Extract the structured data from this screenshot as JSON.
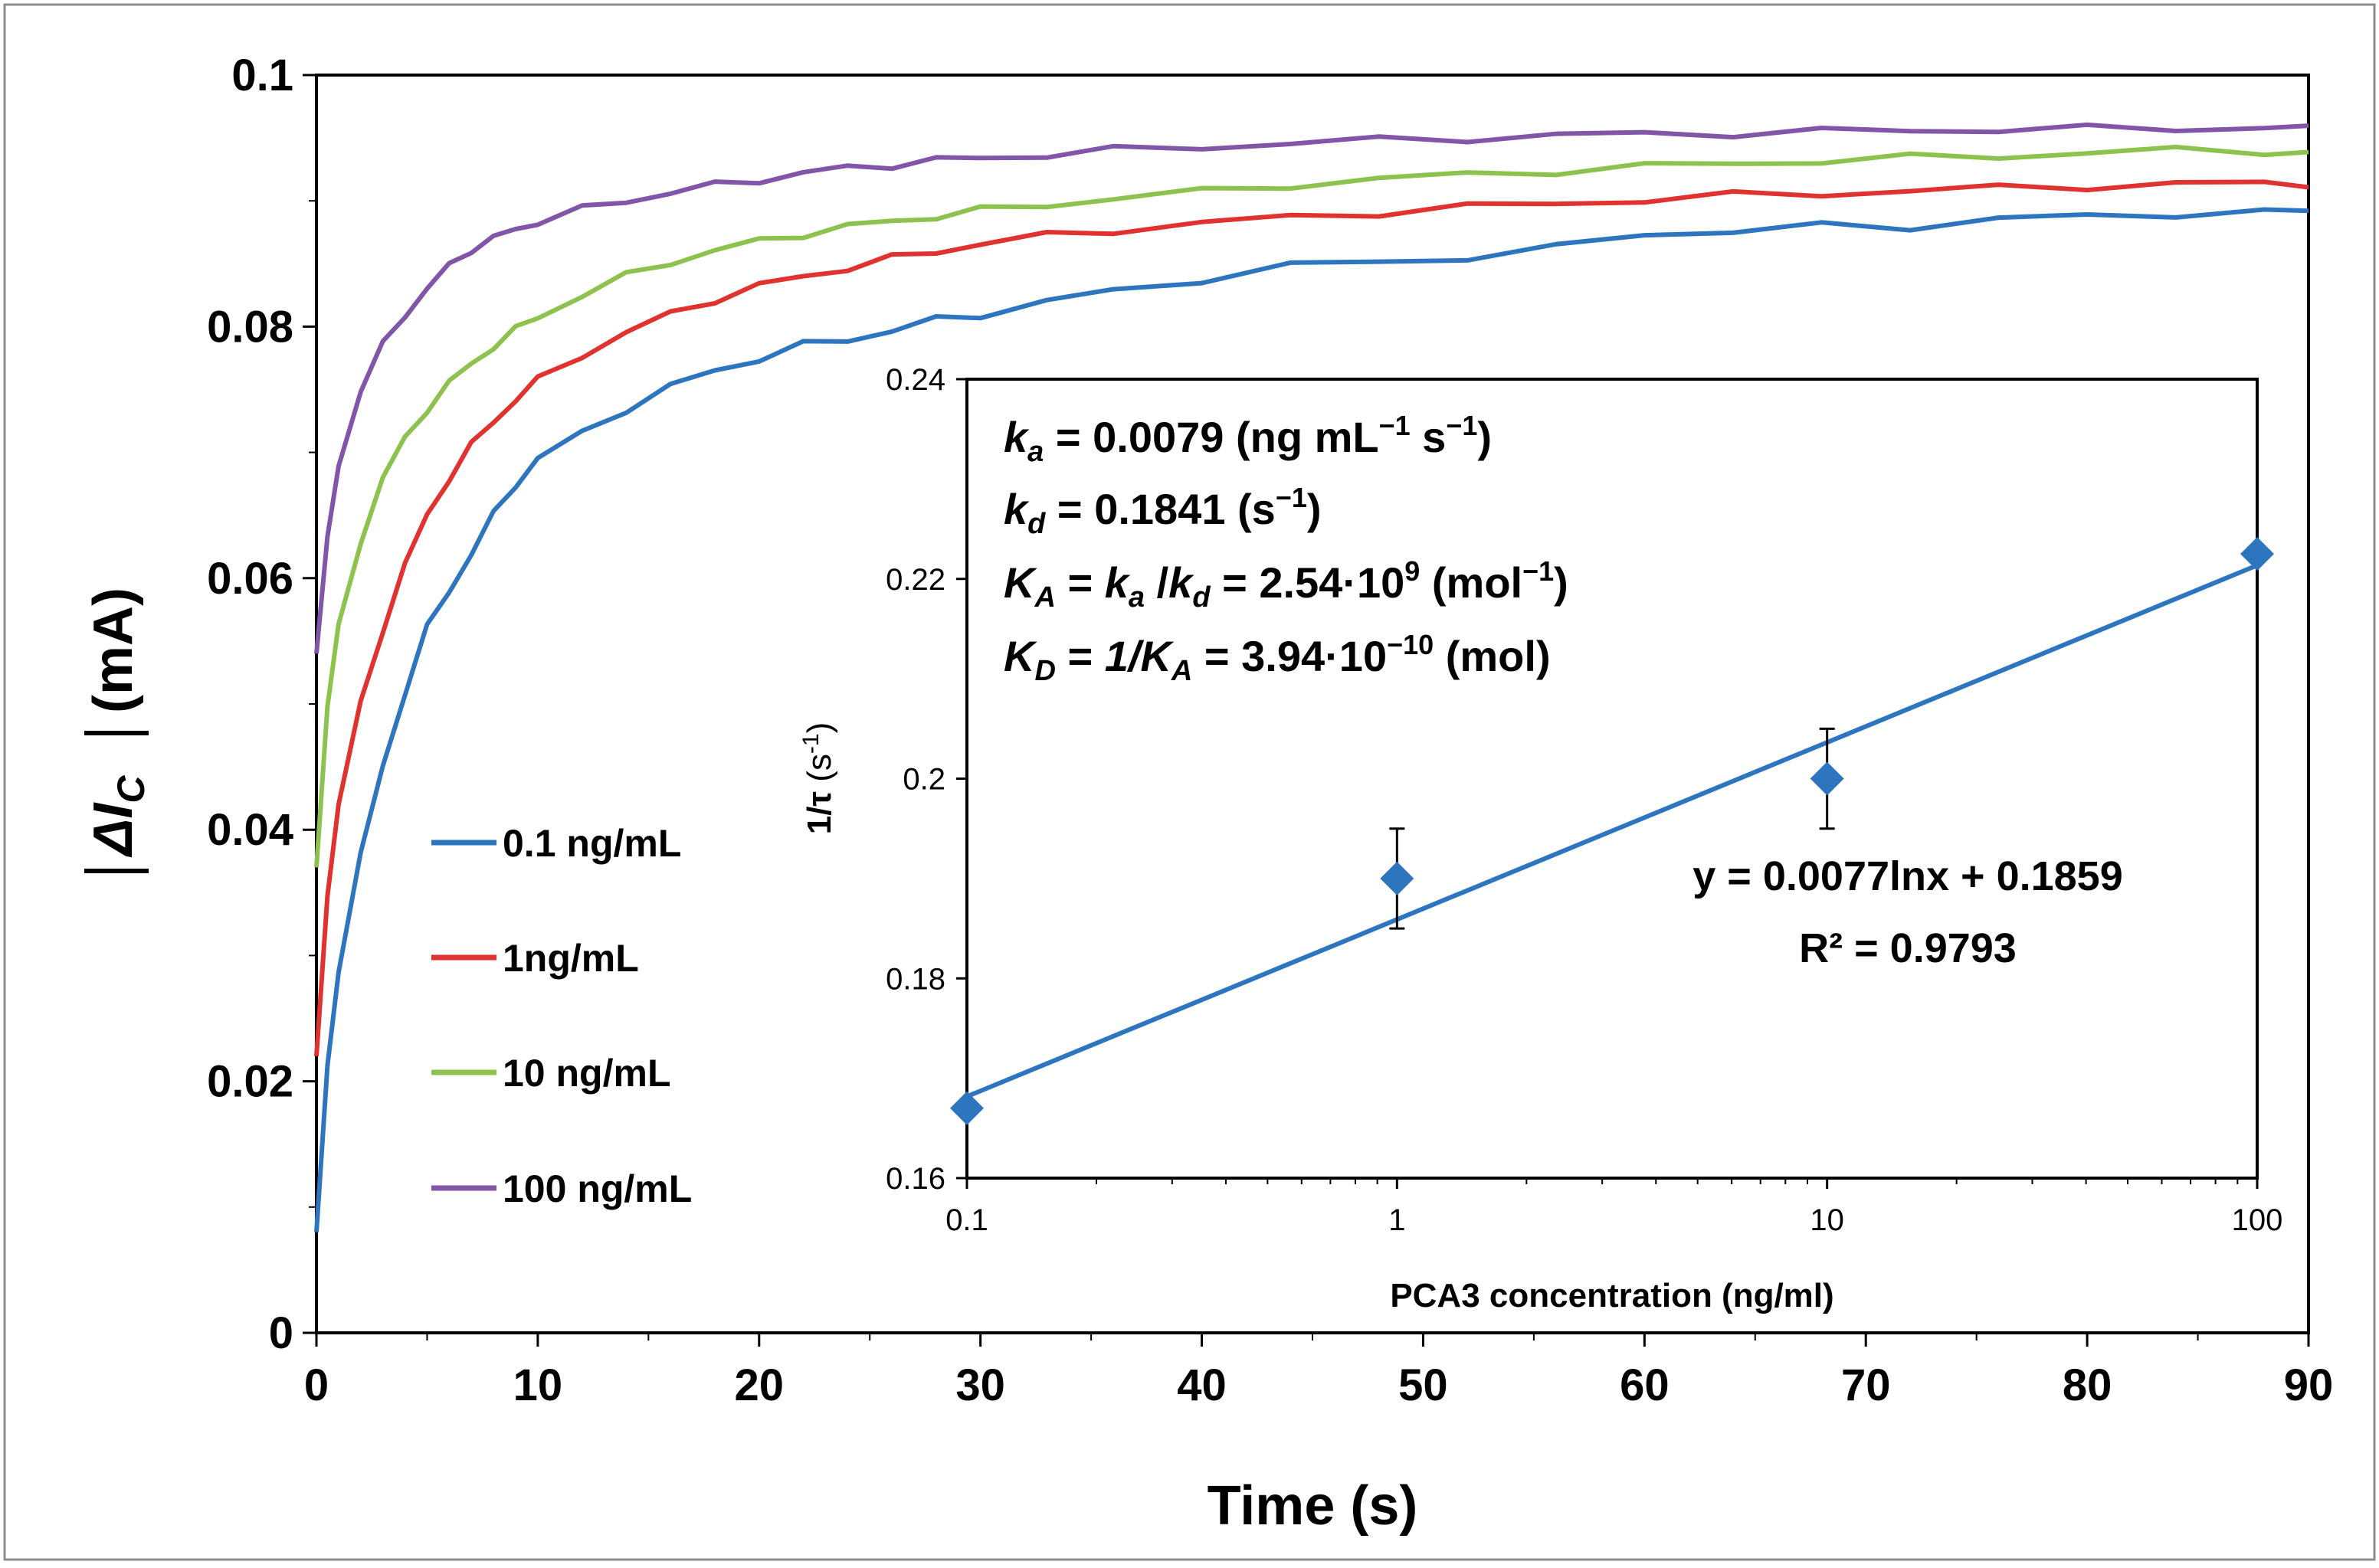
{
  "chart_data": [
    {
      "type": "line",
      "xlabel": "Time (s)",
      "ylabel": {
        "delta": "Δ",
        "var": "I",
        "sub": "C",
        "unit": "(mA)"
      },
      "xlim": [
        0,
        90
      ],
      "ylim": [
        0,
        0.1
      ],
      "x_ticks": [
        "0",
        "10",
        "20",
        "30",
        "40",
        "50",
        "60",
        "70",
        "80",
        "90"
      ],
      "y_ticks": [
        "0",
        "0.02",
        "0.04",
        "0.06",
        "0.08",
        "0.1"
      ],
      "x_tick_values": [
        0,
        10,
        20,
        30,
        40,
        50,
        60,
        70,
        80,
        90
      ],
      "y_tick_values": [
        0,
        0.02,
        0.04,
        0.06,
        0.08,
        0.1
      ],
      "grid": false,
      "legend_position": "left",
      "x": [
        0,
        0.5,
        1,
        2,
        3,
        4,
        5,
        6,
        7,
        8,
        9,
        10,
        12,
        14,
        16,
        18,
        20,
        22,
        24,
        26,
        28,
        30,
        33,
        36,
        40,
        44,
        48,
        52,
        56,
        60,
        64,
        68,
        72,
        76,
        80,
        84,
        88,
        90
      ],
      "series": [
        {
          "name": "0.1 ng/mL",
          "color": "#2e75c0",
          "values": [
            0.008,
            0.021,
            0.029,
            0.038,
            0.045,
            0.051,
            0.056,
            0.059,
            0.062,
            0.065,
            0.0675,
            0.0695,
            0.0715,
            0.0735,
            0.0752,
            0.0765,
            0.0775,
            0.0785,
            0.079,
            0.0797,
            0.0805,
            0.081,
            0.082,
            0.0828,
            0.0838,
            0.0848,
            0.0852,
            0.0855,
            0.0862,
            0.0875,
            0.0875,
            0.088,
            0.088,
            0.0885,
            0.0888,
            0.089,
            0.089,
            0.0893
          ]
        },
        {
          "name": "1ng/mL",
          "color": "#e0322e",
          "values": [
            0.022,
            0.035,
            0.042,
            0.05,
            0.056,
            0.061,
            0.065,
            0.068,
            0.0705,
            0.0725,
            0.0742,
            0.0757,
            0.0778,
            0.0795,
            0.081,
            0.0822,
            0.0832,
            0.084,
            0.0847,
            0.0854,
            0.086,
            0.0866,
            0.0872,
            0.0877,
            0.0882,
            0.0887,
            0.0891,
            0.0895,
            0.0898,
            0.0901,
            0.0904,
            0.0906,
            0.0908,
            0.091,
            0.0912,
            0.0913,
            0.0914,
            0.0914
          ]
        },
        {
          "name": "10 ng/mL",
          "color": "#8ec24e",
          "values": [
            0.037,
            0.05,
            0.056,
            0.063,
            0.068,
            0.071,
            0.0735,
            0.0755,
            0.077,
            0.0785,
            0.0797,
            0.0808,
            0.0825,
            0.084,
            0.0852,
            0.086,
            0.0868,
            0.0874,
            0.0879,
            0.0884,
            0.0888,
            0.0892,
            0.0897,
            0.0902,
            0.0907,
            0.0913,
            0.0917,
            0.0921,
            0.0924,
            0.0927,
            0.093,
            0.0932,
            0.0934,
            0.0936,
            0.0938,
            0.094,
            0.094,
            0.0937
          ]
        },
        {
          "name": "100 ng/mL",
          "color": "#8155a8",
          "values": [
            0.054,
            0.063,
            0.069,
            0.075,
            0.0785,
            0.081,
            0.083,
            0.0848,
            0.0862,
            0.087,
            0.0877,
            0.0884,
            0.0893,
            0.09,
            0.0907,
            0.0912,
            0.0917,
            0.0922,
            0.0926,
            0.0929,
            0.0932,
            0.0934,
            0.0937,
            0.094,
            0.0943,
            0.0946,
            0.0948,
            0.095,
            0.0952,
            0.0953,
            0.0954,
            0.0955,
            0.0956,
            0.0957,
            0.0957,
            0.0958,
            0.0958,
            0.0957
          ]
        }
      ]
    },
    {
      "type": "scatter",
      "x_scale": "log",
      "xlabel": "PCA3 concentration (ng/ml)",
      "ylabel": {
        "main": "1/τ",
        "unit_base": "(s",
        "unit_exp": "-1",
        "unit_close": ")"
      },
      "xlim": [
        0.1,
        100
      ],
      "ylim": [
        0.16,
        0.24
      ],
      "x_ticks": [
        "0.1",
        "1",
        "10",
        "100"
      ],
      "y_ticks": [
        "0.16",
        "0.18",
        "0.2",
        "0.22",
        "0.24"
      ],
      "x_tick_values": [
        0.1,
        1,
        10,
        100
      ],
      "y_tick_values": [
        0.16,
        0.18,
        0.2,
        0.22,
        0.24
      ],
      "points": [
        {
          "x": 0.1,
          "y": 0.167,
          "err": 0
        },
        {
          "x": 1,
          "y": 0.19,
          "err": 0.005
        },
        {
          "x": 10,
          "y": 0.2,
          "err": 0.005
        },
        {
          "x": 100,
          "y": 0.2225,
          "err": 0
        }
      ],
      "point_color": "#2e75c0",
      "fit": {
        "slope": 0.0077,
        "intercept": 0.1859,
        "color": "#2e75c0",
        "equation": "y = 0.0077lnx + 0.1859",
        "r2_label": "R² = 0.9793"
      },
      "annotations": {
        "ka": {
          "sym": "k",
          "sub": "a",
          "text": " = 0.0079 (ng mL",
          "exp1": "−1",
          "mid": " s",
          "exp2": "−1",
          "end": ")"
        },
        "kd": {
          "sym": "k",
          "sub": "d",
          "text": " = 0.1841 (s",
          "exp": "−1",
          "end": ")"
        },
        "KA": {
          "sym": "K",
          "sub": "A",
          "eq": " = ",
          "k1": "k",
          "s1": "a",
          "slash": " /",
          "k2": "k",
          "s2": "d",
          "val": " = 2.54·10",
          "exp": "9",
          "unit": " (mol",
          "uexp": "−1",
          "end": ")"
        },
        "KD": {
          "sym": "K",
          "sub": "D",
          "eq": " = ",
          "expr": "1/K",
          "esub": "A",
          "val": " = 3.94·10",
          "exp": "−10",
          "end": " (mol)"
        }
      }
    }
  ]
}
